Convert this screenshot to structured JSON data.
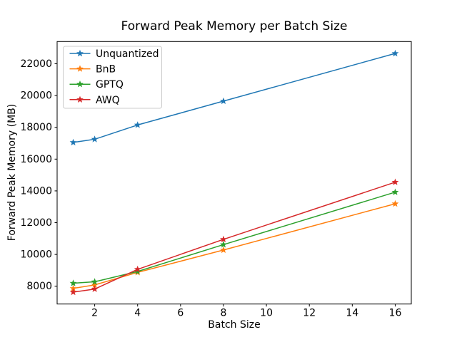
{
  "chart_data": {
    "type": "line",
    "title": "Forward Peak Memory per Batch Size",
    "xlabel": "Batch Size",
    "ylabel": "Forward Peak Memory (MB)",
    "x": [
      1,
      2,
      4,
      8,
      16
    ],
    "series": [
      {
        "name": "Unquantized",
        "color": "#1f77b4",
        "values": [
          17050,
          17250,
          18150,
          19650,
          22650
        ]
      },
      {
        "name": "BnB",
        "color": "#ff7f0e",
        "values": [
          7860,
          8080,
          8870,
          10280,
          13190
        ]
      },
      {
        "name": "GPTQ",
        "color": "#2ca02c",
        "values": [
          8190,
          8280,
          8930,
          10620,
          13920
        ]
      },
      {
        "name": "AWQ",
        "color": "#d62728",
        "values": [
          7630,
          7820,
          9060,
          10950,
          14550
        ]
      }
    ],
    "xticks": [
      2,
      4,
      6,
      8,
      10,
      12,
      14,
      16
    ],
    "yticks": [
      8000,
      10000,
      12000,
      14000,
      16000,
      18000,
      20000,
      22000
    ],
    "xlim": [
      0.25,
      16.75
    ],
    "ylim": [
      6880,
      23400
    ],
    "marker": "star",
    "grid": false,
    "legend_position": "upper left",
    "legend_border_color": "#cccccc",
    "axis_color": "#000000",
    "background_color": "#ffffff"
  }
}
